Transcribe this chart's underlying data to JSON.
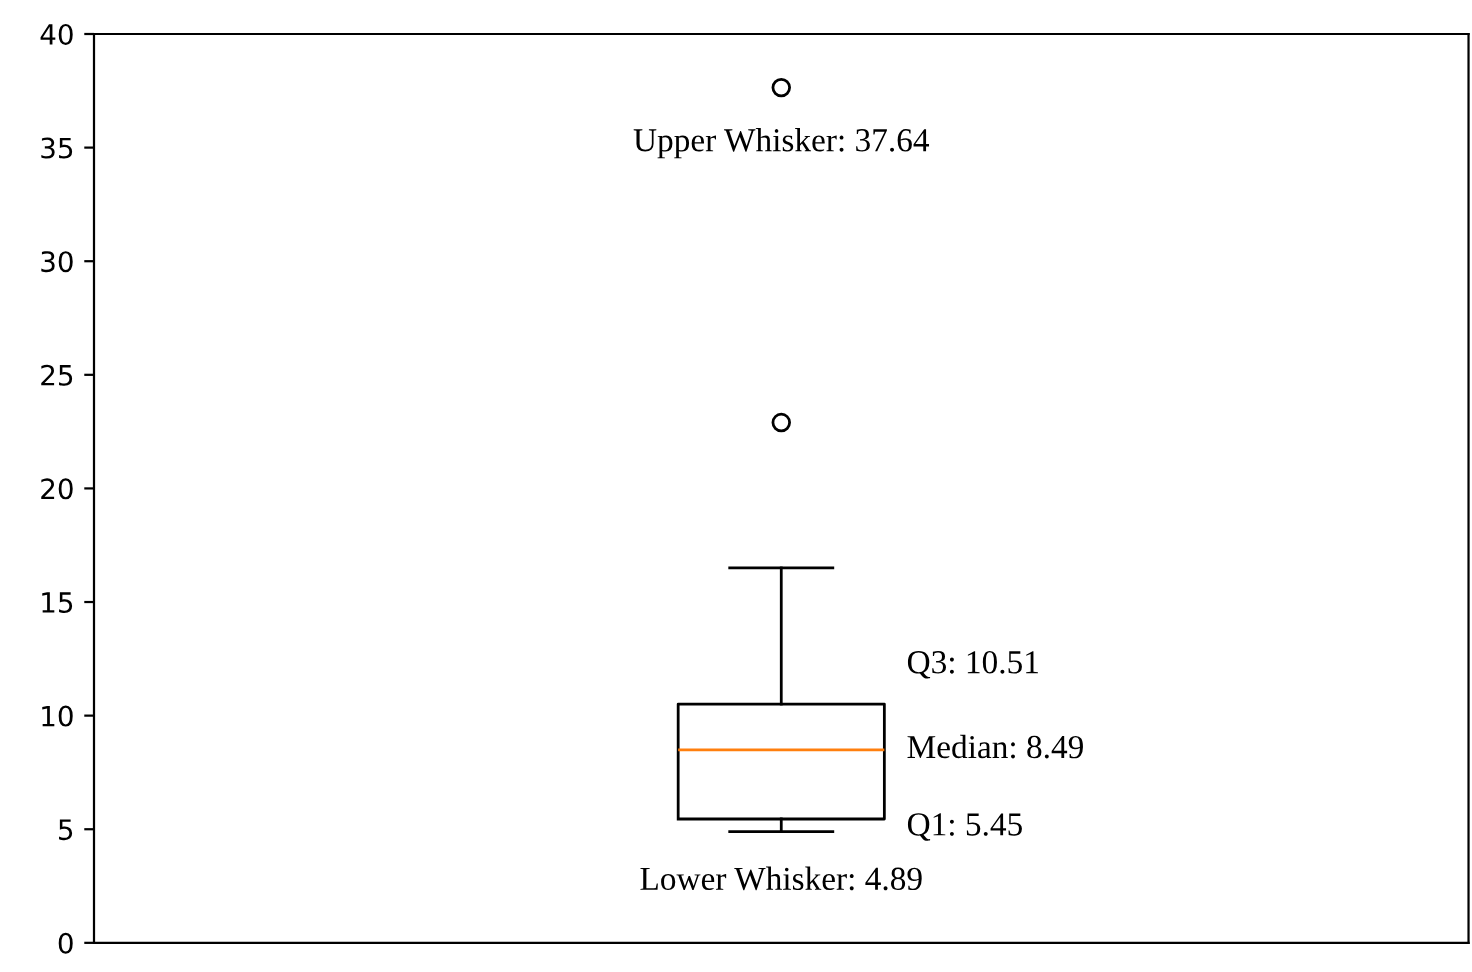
{
  "chart_data": {
    "type": "box",
    "categories": [
      null
    ],
    "boxes": [
      {
        "low": 4.89,
        "q1": 5.45,
        "median": 8.49,
        "q3": 10.51,
        "high": 16.5,
        "outliers": [
          22.9,
          37.64
        ]
      }
    ],
    "ylim": [
      0,
      40
    ],
    "yticks": [
      0,
      5,
      10,
      15,
      20,
      25,
      30,
      35,
      40
    ],
    "tick_labels": "y",
    "grid": false,
    "annotations": [
      "Upper Whisker: 37.64",
      "Q3: 10.51",
      "Median: 8.49",
      "Q1: 5.45",
      "Lower Whisker: 4.89"
    ]
  }
}
